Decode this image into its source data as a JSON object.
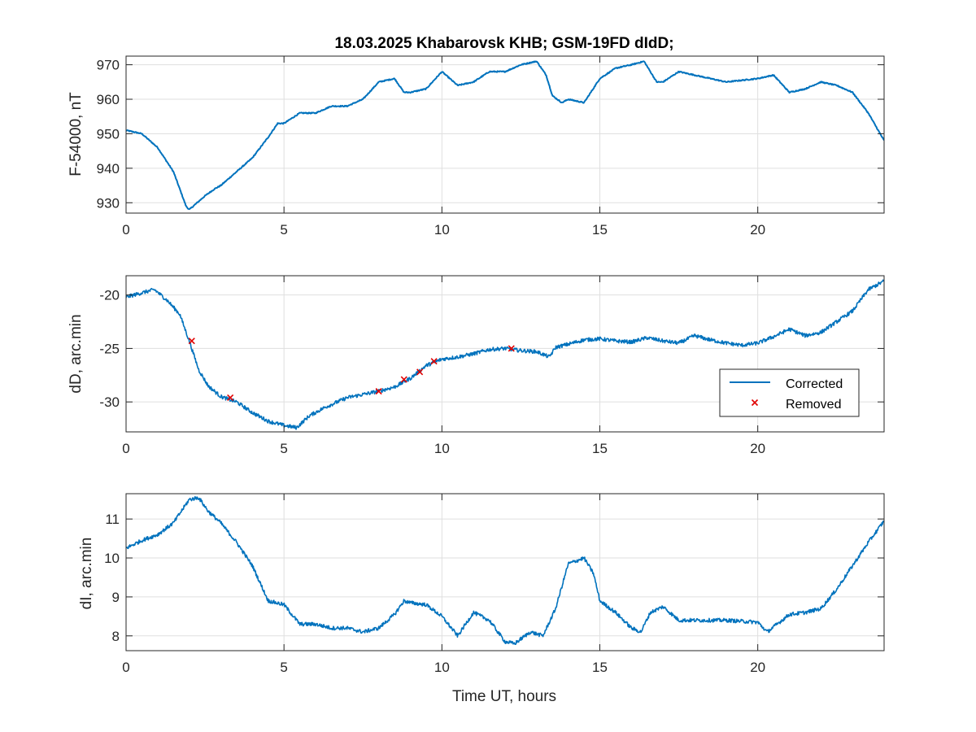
{
  "colors": {
    "series": "#0072BD",
    "removed": "#E00000",
    "grid": "#DFDFDF",
    "axis": "#262626",
    "background": "#FFFFFF"
  },
  "chart_data": [
    {
      "type": "line",
      "title": "18.03.2025  Khabarovsk KHB; GSM-19FD dIdD;",
      "xlabel": "",
      "ylabel": "F-54000, nT",
      "xlim": [
        0,
        24
      ],
      "ylim": [
        927,
        972.5
      ],
      "xticks": [
        0,
        5,
        10,
        15,
        20
      ],
      "xtick_labels": [
        "0",
        "5",
        "10",
        "15",
        "20"
      ],
      "yticks": [
        930,
        940,
        950,
        960,
        970
      ],
      "ytick_labels": [
        "930",
        "940",
        "950",
        "960",
        "970"
      ],
      "grid": true,
      "series": [
        {
          "x": [
            0,
            0.5,
            1.0,
            1.5,
            1.9,
            2.0,
            2.5,
            2.8,
            3.0,
            3.5,
            4.0,
            4.5,
            4.8,
            5.0,
            5.5,
            6.0,
            6.5,
            7.0,
            7.5,
            8.0,
            8.5,
            8.8,
            9.0,
            9.5,
            10.0,
            10.5,
            11.0,
            11.5,
            12.0,
            12.5,
            13.0,
            13.3,
            13.5,
            13.8,
            14.0,
            14.5,
            15.0,
            15.5,
            16.0,
            16.4,
            16.8,
            17.0,
            17.5,
            18.0,
            19.0,
            20.0,
            20.5,
            21.0,
            21.5,
            22.0,
            22.5,
            23.0,
            23.5,
            24.0
          ],
          "values": [
            951,
            950,
            946,
            939,
            929,
            928,
            932,
            934,
            935,
            939,
            943,
            949,
            953,
            953,
            956,
            956,
            958,
            958,
            960,
            965,
            966,
            962,
            962,
            963,
            968,
            964,
            965,
            968,
            968,
            970,
            971,
            967,
            961,
            959,
            960,
            959,
            966,
            969,
            970,
            971,
            965,
            965,
            968,
            967,
            965,
            966,
            967,
            962,
            963,
            965,
            964,
            962,
            956,
            948
          ]
        }
      ]
    },
    {
      "type": "line",
      "title": "",
      "xlabel": "",
      "ylabel": "dD, arc.min",
      "xlim": [
        0,
        24
      ],
      "ylim": [
        -32.8,
        -18.2
      ],
      "xticks": [
        0,
        5,
        10,
        15,
        20
      ],
      "xtick_labels": [
        "0",
        "5",
        "10",
        "15",
        "20"
      ],
      "yticks": [
        -30,
        -25,
        -20
      ],
      "ytick_labels": [
        "-30",
        "-25",
        "-20"
      ],
      "grid": true,
      "legend": "lower-right",
      "series": [
        {
          "name": "Corrected",
          "x": [
            0,
            0.5,
            0.9,
            1.3,
            1.7,
            2.0,
            2.3,
            2.6,
            3.0,
            3.5,
            4.0,
            4.5,
            5.0,
            5.4,
            5.8,
            6.3,
            7.0,
            7.5,
            8.0,
            8.5,
            9.0,
            9.5,
            10.0,
            10.5,
            11.0,
            11.5,
            12.0,
            12.5,
            13.0,
            13.4,
            13.6,
            14.0,
            14.5,
            15.0,
            15.5,
            16.0,
            16.5,
            17.0,
            17.5,
            18.0,
            18.5,
            19.0,
            19.5,
            20.0,
            20.5,
            21.0,
            21.5,
            22.0,
            22.5,
            23.0,
            23.5,
            24.0
          ],
          "values": [
            -20.2,
            -19.8,
            -19.5,
            -20.5,
            -21.8,
            -24.3,
            -27.0,
            -28.5,
            -29.5,
            -30.0,
            -31.0,
            -31.8,
            -32.2,
            -32.4,
            -31.3,
            -30.5,
            -29.6,
            -29.3,
            -29.0,
            -28.6,
            -27.8,
            -26.6,
            -26.0,
            -25.8,
            -25.5,
            -25.1,
            -25.0,
            -25.2,
            -25.3,
            -25.8,
            -24.9,
            -24.6,
            -24.2,
            -24.1,
            -24.3,
            -24.4,
            -24.0,
            -24.3,
            -24.5,
            -23.8,
            -24.2,
            -24.5,
            -24.7,
            -24.5,
            -23.9,
            -23.2,
            -23.8,
            -23.5,
            -22.5,
            -21.5,
            -19.5,
            -18.7
          ]
        },
        {
          "name": "Removed",
          "x": [
            2.08,
            3.3,
            8.0,
            8.8,
            9.3,
            9.75,
            12.2
          ],
          "values": [
            -24.3,
            -29.6,
            -29.0,
            -27.9,
            -27.2,
            -26.2,
            -25.0
          ]
        }
      ]
    },
    {
      "type": "line",
      "title": "",
      "xlabel": "Time UT, hours",
      "ylabel": "dI, arc.min",
      "xlim": [
        0,
        24
      ],
      "ylim": [
        7.62,
        11.65
      ],
      "xticks": [
        0,
        5,
        10,
        15,
        20
      ],
      "xtick_labels": [
        "0",
        "5",
        "10",
        "15",
        "20"
      ],
      "yticks": [
        8,
        9,
        10,
        11
      ],
      "ytick_labels": [
        "8",
        "9",
        "10",
        "11"
      ],
      "grid": true,
      "series": [
        {
          "x": [
            0,
            0.5,
            1.0,
            1.5,
            2.0,
            2.3,
            2.6,
            3.0,
            3.5,
            4.0,
            4.5,
            5.0,
            5.5,
            6.0,
            6.5,
            7.0,
            7.5,
            8.0,
            8.5,
            8.8,
            9.0,
            9.5,
            10.0,
            10.5,
            11.0,
            11.5,
            12.0,
            12.3,
            12.8,
            13.2,
            13.6,
            14.0,
            14.5,
            14.8,
            15.0,
            15.5,
            16.0,
            16.3,
            16.6,
            17.0,
            17.5,
            18.0,
            19.0,
            20.0,
            20.3,
            21.0,
            21.5,
            22.0,
            22.5,
            23.0,
            23.5,
            24.0
          ],
          "values": [
            10.25,
            10.45,
            10.6,
            10.9,
            11.5,
            11.55,
            11.2,
            10.9,
            10.4,
            9.8,
            8.9,
            8.8,
            8.3,
            8.3,
            8.2,
            8.2,
            8.1,
            8.2,
            8.55,
            8.9,
            8.85,
            8.8,
            8.5,
            8.0,
            8.6,
            8.4,
            7.85,
            7.8,
            8.1,
            8.0,
            8.7,
            9.85,
            10.0,
            9.6,
            8.9,
            8.6,
            8.2,
            8.1,
            8.6,
            8.75,
            8.4,
            8.4,
            8.4,
            8.35,
            8.1,
            8.55,
            8.6,
            8.7,
            9.2,
            9.8,
            10.4,
            10.95
          ]
        }
      ]
    }
  ]
}
